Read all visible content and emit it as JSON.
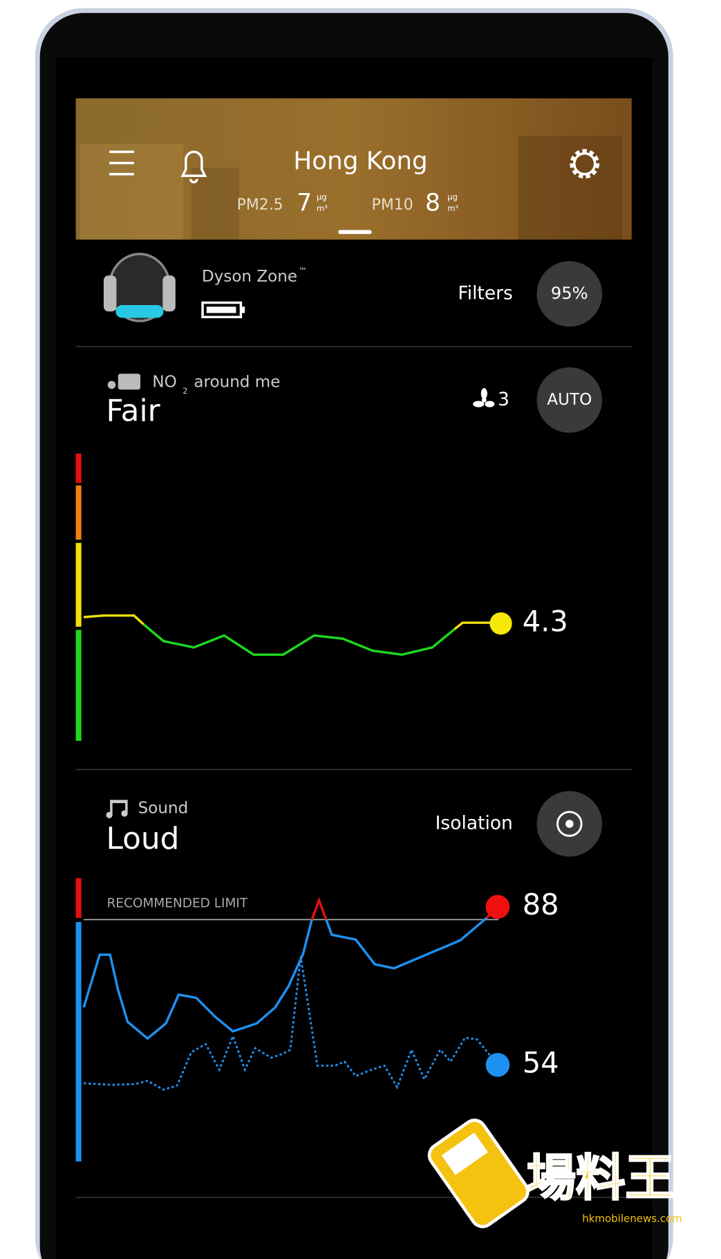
{
  "header": {
    "city": "Hong Kong",
    "pm25_label": "PM2.5",
    "pm25_value": "7",
    "pm10_label": "PM10",
    "pm10_value": "8",
    "unit_top": "µg",
    "unit_bottom": "m³"
  },
  "device": {
    "name": "Dyson Zone",
    "trademark": "™",
    "filters_label": "Filters",
    "filters_value": "95%"
  },
  "no2": {
    "label_prefix": "NO",
    "subscript": "2",
    "label_suffix": "around me",
    "status": "Fair",
    "fan_speed": "3",
    "mode": "AUTO",
    "current_value": "4.3"
  },
  "sound": {
    "label": "Sound",
    "status": "Loud",
    "mode": "Isolation",
    "limit_label": "RECOMMENDED LIMIT",
    "peak_value": "88",
    "current_value": "54"
  },
  "watermark": {
    "brand": "場料王",
    "site": "hkmobilenews.com"
  }
}
